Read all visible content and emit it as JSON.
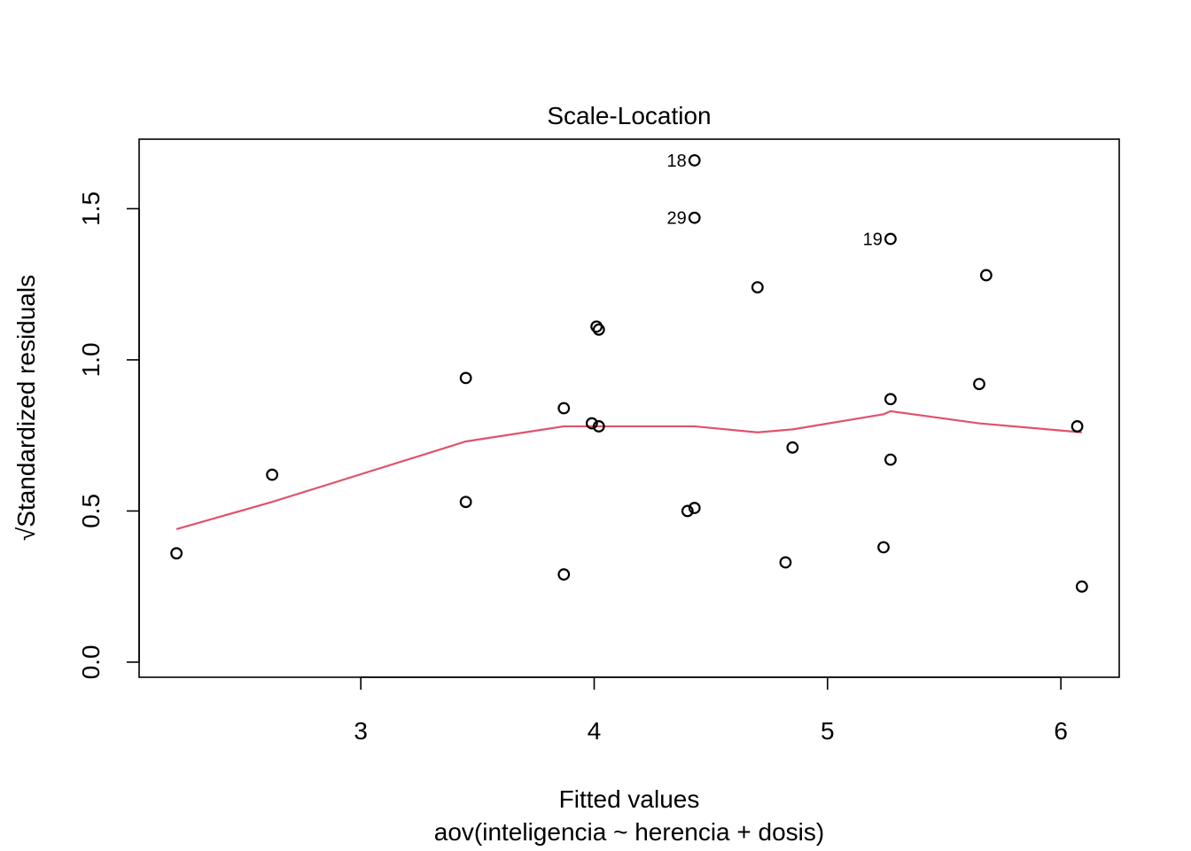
{
  "chart_data": {
    "type": "scatter",
    "title": "Scale-Location",
    "xlabel": "Fitted values",
    "xsublabel": "aov(inteligencia ~ herencia + dosis)",
    "ylabel": "Standardized residuals",
    "ylabel_sqrt_symbol": "√",
    "xlim": [
      2.05,
      6.25
    ],
    "ylim": [
      -0.05,
      1.73
    ],
    "xticks": [
      3,
      4,
      5,
      6
    ],
    "xtick_labels": [
      "3",
      "4",
      "5",
      "6"
    ],
    "yticks": [
      0.0,
      0.5,
      1.0,
      1.5
    ],
    "ytick_labels": [
      "0.0",
      "0.5",
      "1.0",
      "1.5"
    ],
    "points": [
      {
        "x": 2.21,
        "y": 0.36
      },
      {
        "x": 2.62,
        "y": 0.62
      },
      {
        "x": 3.45,
        "y": 0.94
      },
      {
        "x": 3.45,
        "y": 0.53
      },
      {
        "x": 3.87,
        "y": 0.84
      },
      {
        "x": 3.87,
        "y": 0.29
      },
      {
        "x": 3.99,
        "y": 0.79
      },
      {
        "x": 4.01,
        "y": 1.11
      },
      {
        "x": 4.02,
        "y": 1.1
      },
      {
        "x": 4.02,
        "y": 0.78
      },
      {
        "x": 4.4,
        "y": 0.5
      },
      {
        "x": 4.43,
        "y": 0.51
      },
      {
        "x": 4.43,
        "y": 1.66,
        "label": "18"
      },
      {
        "x": 4.43,
        "y": 1.47,
        "label": "29"
      },
      {
        "x": 4.7,
        "y": 1.24
      },
      {
        "x": 4.82,
        "y": 0.33
      },
      {
        "x": 4.85,
        "y": 0.71
      },
      {
        "x": 5.24,
        "y": 0.38
      },
      {
        "x": 5.27,
        "y": 1.4,
        "label": "19"
      },
      {
        "x": 5.27,
        "y": 0.87
      },
      {
        "x": 5.27,
        "y": 0.67
      },
      {
        "x": 5.65,
        "y": 0.92
      },
      {
        "x": 5.68,
        "y": 1.28
      },
      {
        "x": 6.07,
        "y": 0.78
      },
      {
        "x": 6.09,
        "y": 0.25
      }
    ],
    "smooth_line": {
      "color": "#DF536B",
      "x": [
        2.21,
        2.62,
        3.45,
        3.87,
        4.02,
        4.43,
        4.7,
        4.85,
        5.24,
        5.27,
        5.65,
        6.09
      ],
      "y": [
        0.44,
        0.53,
        0.73,
        0.78,
        0.78,
        0.78,
        0.76,
        0.77,
        0.82,
        0.83,
        0.79,
        0.76
      ]
    },
    "grid": false
  }
}
